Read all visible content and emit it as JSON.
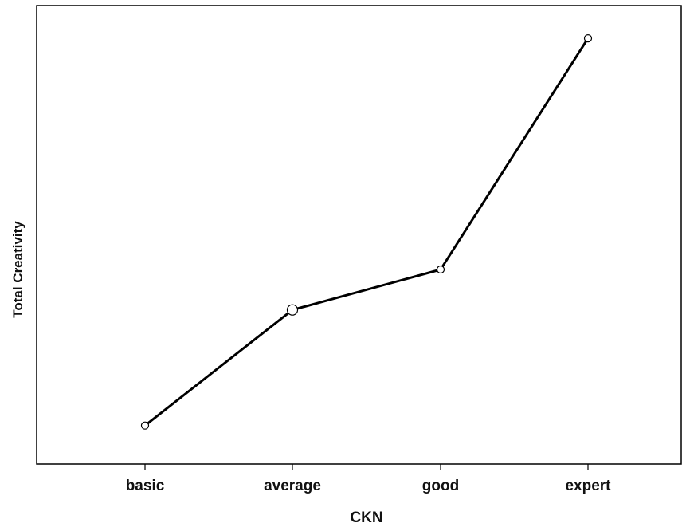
{
  "chart_data": {
    "type": "line",
    "title": "",
    "xlabel": "CKN",
    "ylabel": "Total Creativity",
    "categories": [
      "basic",
      "average",
      "good",
      "expert"
    ],
    "series": [
      {
        "values": [
          1.0,
          4.0,
          5.05,
          11.05
        ]
      }
    ],
    "ylim": [
      0,
      11.9
    ],
    "y_ticks_shown": false,
    "grid": false,
    "legend": "none",
    "marker_sizes": [
      "small",
      "large",
      "small",
      "small"
    ],
    "colors": {
      "line": "#000000",
      "axis": "#000000",
      "background": "#ffffff"
    }
  }
}
